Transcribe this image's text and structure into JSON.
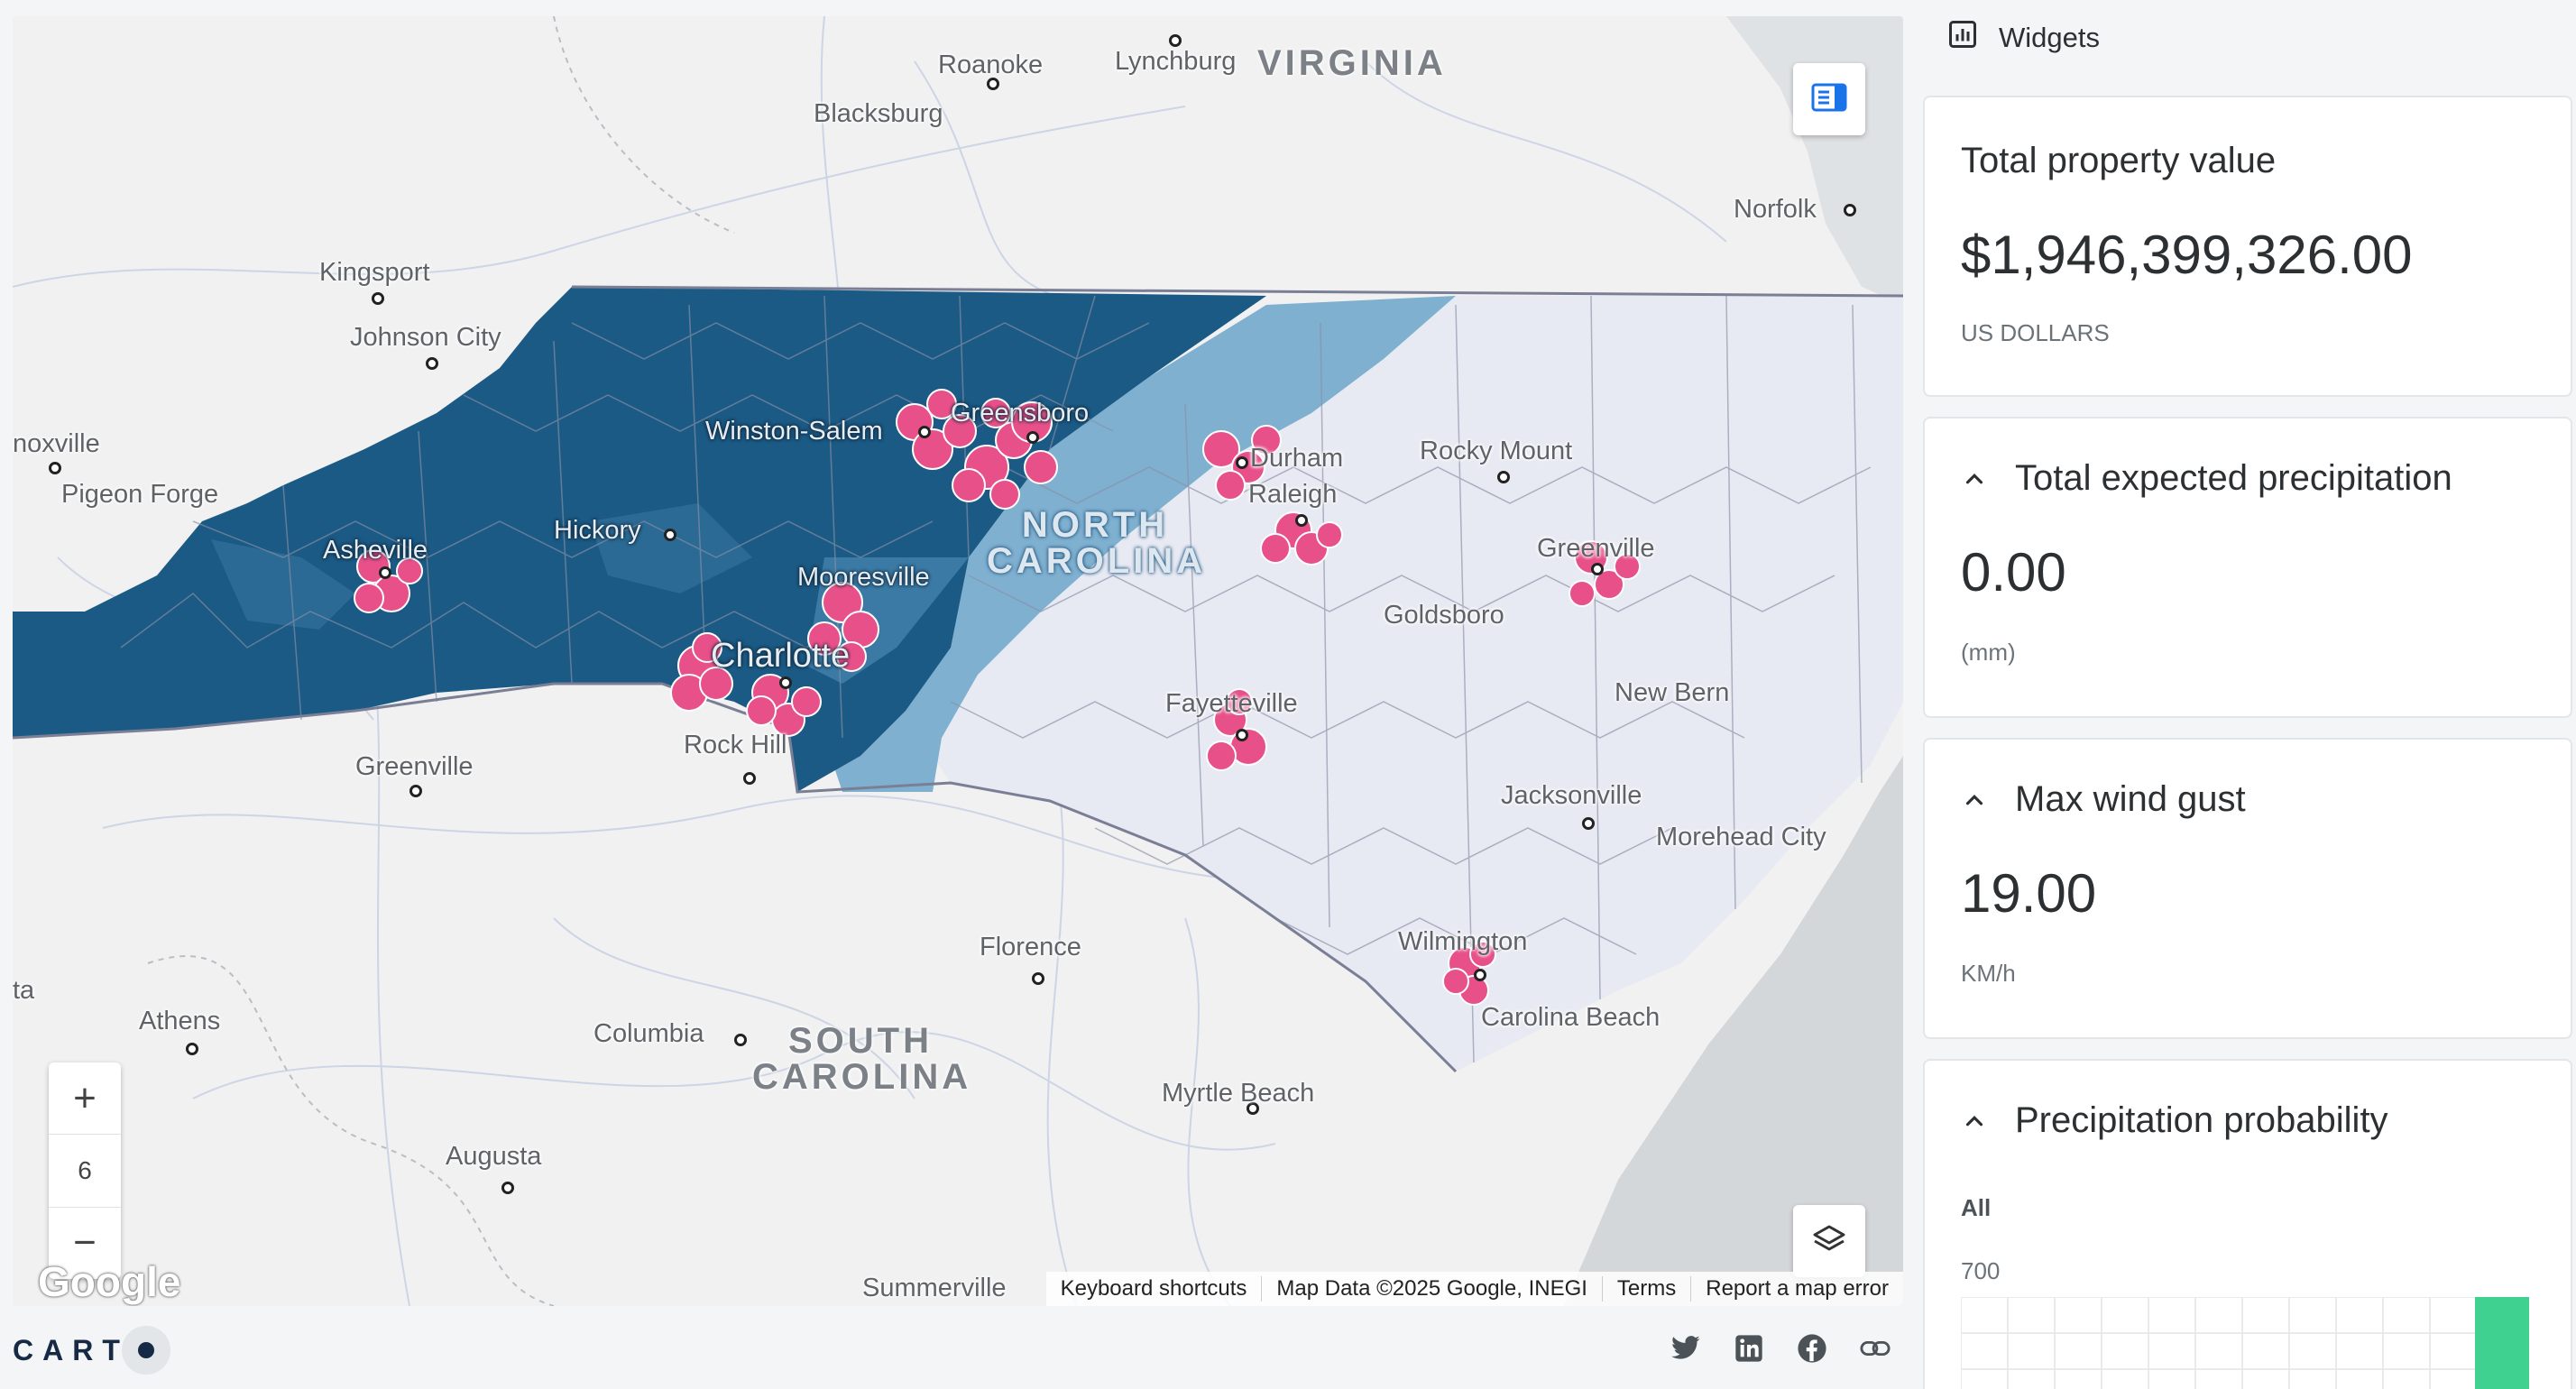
{
  "map": {
    "city_labels": [
      {
        "name": "Roanoke"
      },
      {
        "name": "Lynchburg"
      },
      {
        "name": "Blacksburg"
      },
      {
        "name": "Norfolk"
      },
      {
        "name": "Kingsport"
      },
      {
        "name": "Johnson City"
      },
      {
        "name": "noxville"
      },
      {
        "name": "Pigeon Forge"
      },
      {
        "name": "Winston-Salem"
      },
      {
        "name": "Greensboro"
      },
      {
        "name": "Durham"
      },
      {
        "name": "Raleigh"
      },
      {
        "name": "Rocky Mount"
      },
      {
        "name": "Asheville"
      },
      {
        "name": "Hickory"
      },
      {
        "name": "Mooresville"
      },
      {
        "name": "Charlotte"
      },
      {
        "name": "Greenville"
      },
      {
        "name": "Goldsboro"
      },
      {
        "name": "Fayetteville"
      },
      {
        "name": "New Bern"
      },
      {
        "name": "Rock Hill"
      },
      {
        "name": "Greenville"
      },
      {
        "name": "Jacksonville"
      },
      {
        "name": "Morehead City"
      },
      {
        "name": "Florence"
      },
      {
        "name": "Wilmington"
      },
      {
        "name": "Carolina Beach"
      },
      {
        "name": "Athens"
      },
      {
        "name": "Columbia"
      },
      {
        "name": "Myrtle Beach"
      },
      {
        "name": "Augusta"
      },
      {
        "name": "Summerville"
      },
      {
        "name": "ta"
      }
    ],
    "state_labels": {
      "virginia": "VIRGINIA",
      "north_carolina": "NORTH\nCAROLINA",
      "south_carolina": "SOUTH\nCAROLINA"
    },
    "zoom": {
      "plus": "+",
      "level": "6",
      "minus": "−"
    },
    "google_logo": "Google",
    "attribution": {
      "keyboard": "Keyboard shortcuts",
      "data": "Map Data ©2025 Google, INEGI",
      "terms": "Terms",
      "report": "Report a map error"
    },
    "colors": {
      "dark_region": "#1b5a85",
      "mid_region": "#3a7aa5",
      "light_region": "#7fb0d0",
      "pale_region": "#e8eaf3",
      "cluster": "#e8508a"
    }
  },
  "footer": {
    "logo_text": "CART",
    "social_icons": [
      "twitter-icon",
      "linkedin-icon",
      "facebook-icon",
      "link-icon"
    ]
  },
  "sidebar": {
    "header": "Widgets",
    "widgets": [
      {
        "title": "Total property value",
        "value": "$1,946,399,326.00",
        "unit": "US DOLLARS",
        "collapsible": false
      },
      {
        "title": "Total expected precipitation",
        "value": "0.00",
        "unit": "(mm)",
        "collapsible": true
      },
      {
        "title": "Max wind gust",
        "value": "19.00",
        "unit": "KM/h",
        "collapsible": true
      },
      {
        "title": "Precipitation probability",
        "filter": "All",
        "axis_top": "700",
        "collapsible": true
      }
    ],
    "accent_bar": "#3fd18f"
  }
}
